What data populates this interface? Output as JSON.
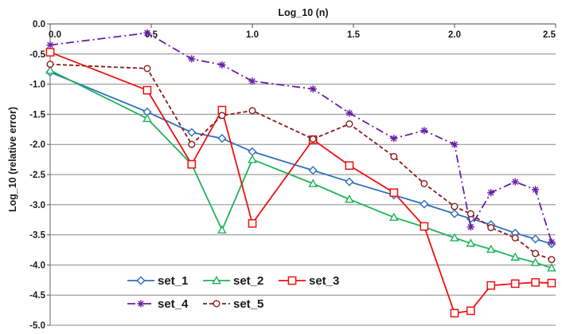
{
  "chart_data": {
    "type": "line",
    "title": "",
    "xlabel": "Log_10 (n)",
    "ylabel": "Log_10 (relative error)",
    "xlim": [
      0,
      2.5
    ],
    "ylim": [
      -5,
      0
    ],
    "x_ticks": [
      "0.0",
      "0.5",
      "1.0",
      "1.5",
      "2.0",
      "2.5"
    ],
    "y_ticks": [
      "0.0",
      "-0.5",
      "-1.0",
      "-1.5",
      "-2.0",
      "-2.5",
      "-3.0",
      "-3.5",
      "-4.0",
      "-4.5",
      "-5.0"
    ],
    "x_axis_position": "top",
    "grid": "horizontal",
    "legend_position": "bottom-left",
    "series": [
      {
        "name": "set_1",
        "color": "#2f6fc0",
        "marker": "diamond",
        "line": "solid",
        "points": [
          [
            0,
            -0.8
          ],
          [
            0.48,
            -1.46
          ],
          [
            0.7,
            -1.8
          ],
          [
            0.85,
            -1.9
          ],
          [
            1.0,
            -2.12
          ],
          [
            1.3,
            -2.43
          ],
          [
            1.48,
            -2.62
          ],
          [
            1.7,
            -2.84
          ],
          [
            1.85,
            -2.99
          ],
          [
            2.0,
            -3.15
          ],
          [
            2.08,
            -3.23
          ],
          [
            2.18,
            -3.33
          ],
          [
            2.3,
            -3.47
          ],
          [
            2.4,
            -3.57
          ],
          [
            2.48,
            -3.65
          ]
        ]
      },
      {
        "name": "set_2",
        "color": "#1fb35a",
        "marker": "triangle",
        "line": "solid",
        "points": [
          [
            0,
            -0.77
          ],
          [
            0.48,
            -1.57
          ],
          [
            0.7,
            -2.33
          ],
          [
            0.85,
            -3.42
          ],
          [
            1.0,
            -2.25
          ],
          [
            1.3,
            -2.65
          ],
          [
            1.48,
            -2.91
          ],
          [
            1.7,
            -3.21
          ],
          [
            1.85,
            -3.37
          ],
          [
            2.0,
            -3.55
          ],
          [
            2.08,
            -3.64
          ],
          [
            2.18,
            -3.74
          ],
          [
            2.3,
            -3.87
          ],
          [
            2.4,
            -3.96
          ],
          [
            2.48,
            -4.05
          ]
        ]
      },
      {
        "name": "set_3",
        "color": "#ee1111",
        "marker": "square",
        "line": "solid",
        "points": [
          [
            0,
            -0.47
          ],
          [
            0.48,
            -1.1
          ],
          [
            0.7,
            -2.33
          ],
          [
            0.85,
            -1.43
          ],
          [
            1.0,
            -3.31
          ],
          [
            1.3,
            -1.92
          ],
          [
            1.48,
            -2.35
          ],
          [
            1.7,
            -2.8
          ],
          [
            1.85,
            -3.36
          ],
          [
            2.0,
            -4.8
          ],
          [
            2.08,
            -4.76
          ],
          [
            2.18,
            -4.34
          ],
          [
            2.3,
            -4.31
          ],
          [
            2.4,
            -4.29
          ],
          [
            2.48,
            -4.3
          ]
        ]
      },
      {
        "name": "set_4",
        "color": "#6a1fa5",
        "marker": "star",
        "line": "dashdot",
        "points": [
          [
            0,
            -0.35
          ],
          [
            0.48,
            -0.15
          ],
          [
            0.7,
            -0.58
          ],
          [
            0.85,
            -0.68
          ],
          [
            1.0,
            -0.95
          ],
          [
            1.3,
            -1.08
          ],
          [
            1.48,
            -1.48
          ],
          [
            1.7,
            -1.9
          ],
          [
            1.85,
            -1.77
          ],
          [
            2.0,
            -2.0
          ],
          [
            2.08,
            -3.37
          ],
          [
            2.18,
            -2.8
          ],
          [
            2.3,
            -2.62
          ],
          [
            2.4,
            -2.75
          ],
          [
            2.48,
            -3.62
          ]
        ]
      },
      {
        "name": "set_5",
        "color": "#8b1a1a",
        "marker": "circle",
        "line": "dashed",
        "points": [
          [
            0,
            -0.67
          ],
          [
            0.48,
            -0.74
          ],
          [
            0.7,
            -2.0
          ],
          [
            0.85,
            -1.52
          ],
          [
            1.0,
            -1.44
          ],
          [
            1.3,
            -1.91
          ],
          [
            1.48,
            -1.66
          ],
          [
            1.7,
            -2.2
          ],
          [
            1.85,
            -2.65
          ],
          [
            2.0,
            -3.03
          ],
          [
            2.08,
            -3.15
          ],
          [
            2.18,
            -3.38
          ],
          [
            2.3,
            -3.55
          ],
          [
            2.4,
            -3.81
          ],
          [
            2.48,
            -3.91
          ]
        ]
      }
    ]
  }
}
